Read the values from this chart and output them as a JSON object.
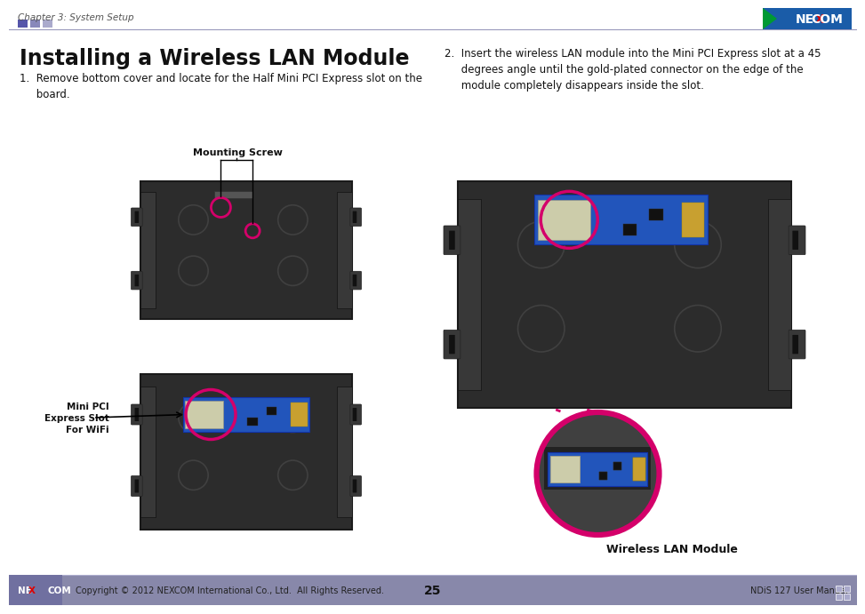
{
  "bg_color": "#ffffff",
  "header_text": "Chapter 3: System Setup",
  "header_color": "#555555",
  "header_fontsize": 7.5,
  "title": "Installing a Wireless LAN Module",
  "title_fontsize": 17,
  "step1_text": "1.  Remove bottom cover and locate for the Half Mini PCI Express slot on the\n     board.",
  "step2_text": "2.  Insert the wireless LAN module into the Mini PCI Express slot at a 45\n     degrees angle until the gold-plated connector on the edge of the\n     module completely disappears inside the slot.",
  "label_mounting_screw": "Mounting Screw",
  "label_mini_pci": "Mini PCI\nExpress Slot\nFor WiFi",
  "label_wireless_lan": "Wireless LAN Module",
  "accent_color": "#d4006a",
  "divider_sq_colors": [
    "#5555aa",
    "#8888bb",
    "#aaaacc"
  ],
  "footer_bg": "#8888aa",
  "footer_logo_bg": "#7070a0",
  "footer_text_left": "Copyright © 2012 NEXCOM International Co., Ltd.  All Rights Reserved.",
  "footer_text_center": "25",
  "footer_text_right": "NDiS 127 User Manual",
  "footer_fontsize": 7,
  "separator_line_color": "#9999bb",
  "device_dark": "#2c2c2c",
  "device_mid": "#383838",
  "device_light": "#484848",
  "board_blue": "#2255bb",
  "board_blue2": "#3377dd",
  "text_color": "#111111",
  "logo_blue": "#1a5ca8",
  "logo_green": "#009933",
  "logo_red": "#dd0000"
}
